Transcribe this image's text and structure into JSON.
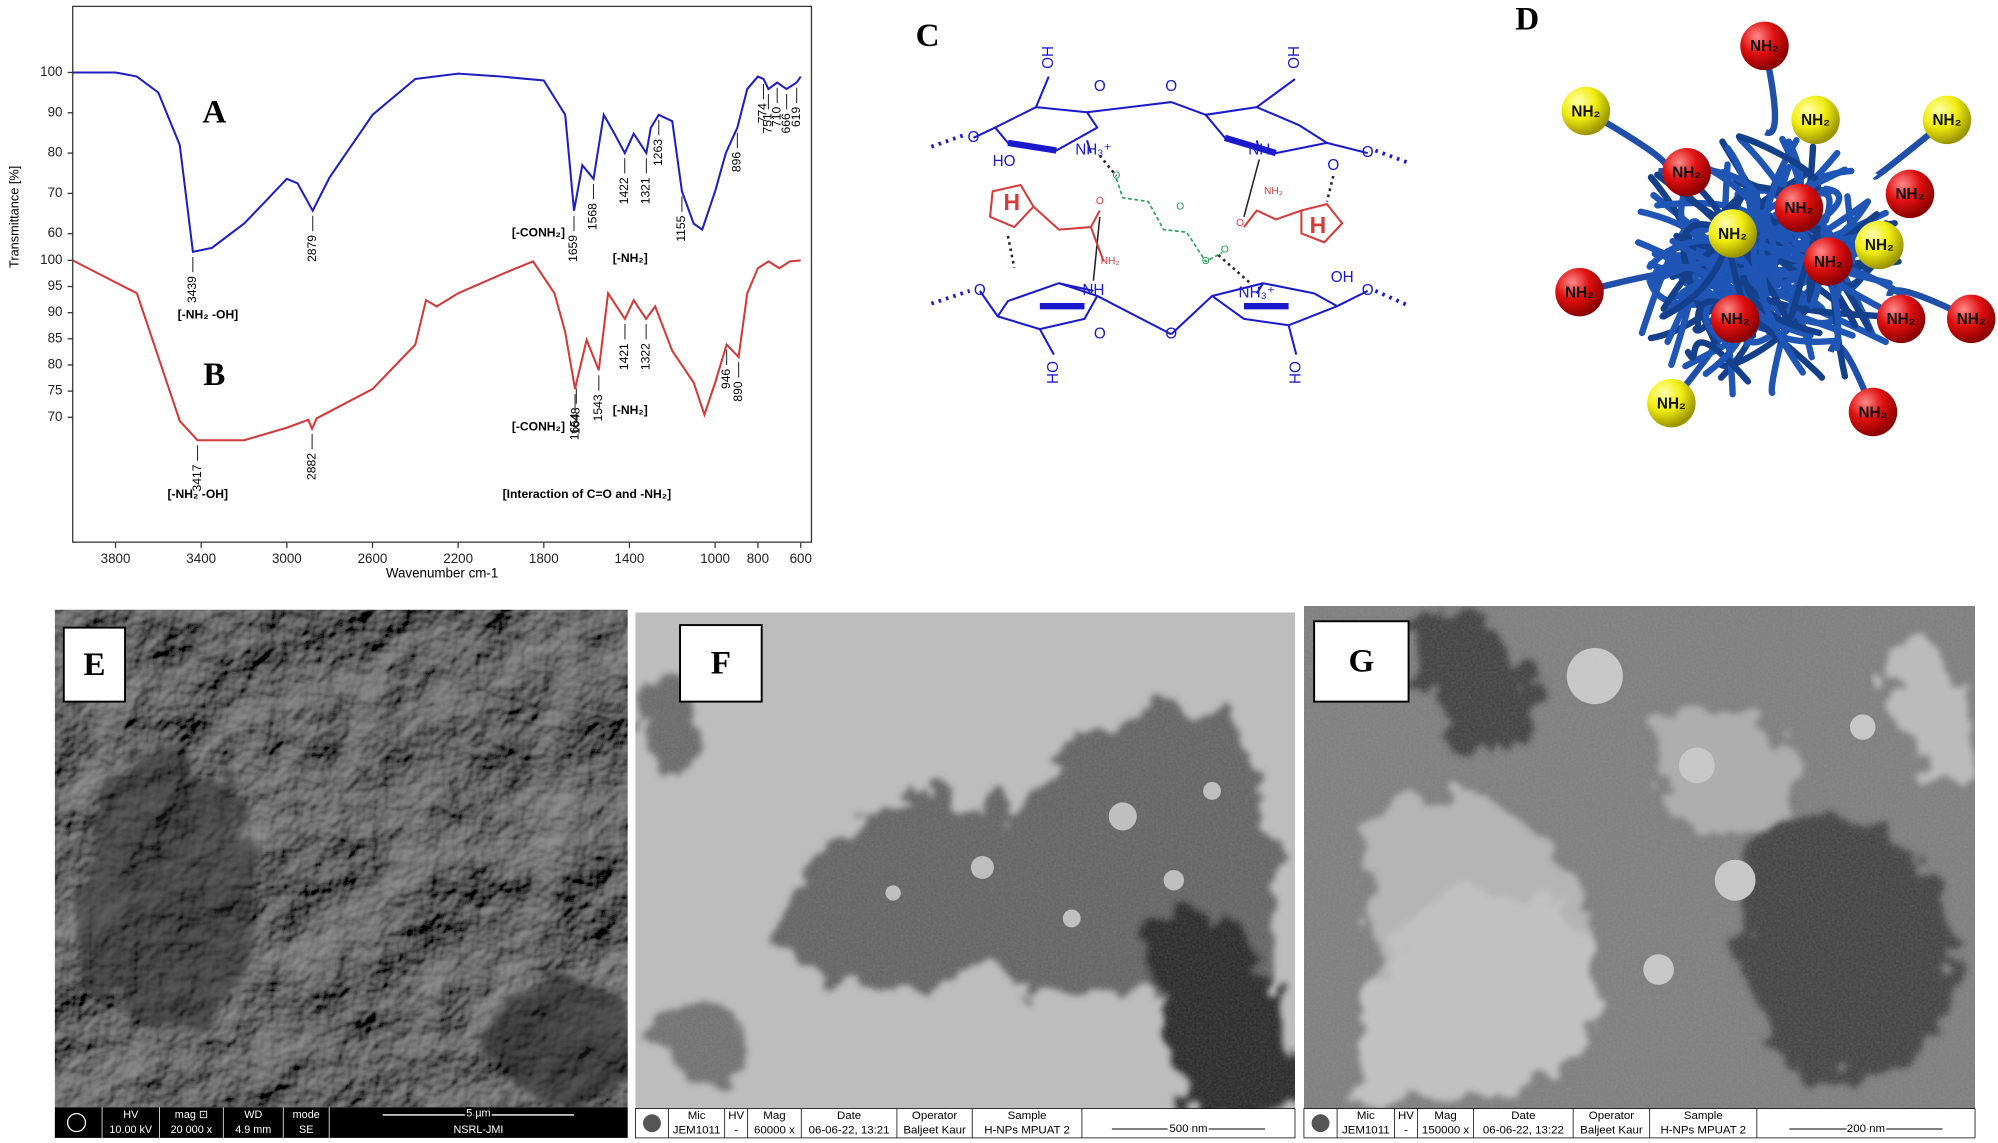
{
  "chart_data": [
    {
      "type": "line",
      "panel": "A",
      "color": "#1f1fbf",
      "y_label": "Transmittance [%]",
      "x": [
        4000,
        3800,
        3700,
        3600,
        3500,
        3439,
        3350,
        3200,
        3100,
        3000,
        2950,
        2879,
        2800,
        2600,
        2400,
        2200,
        2000,
        1800,
        1700,
        1659,
        1620,
        1568,
        1520,
        1470,
        1422,
        1380,
        1321,
        1300,
        1263,
        1200,
        1155,
        1100,
        1060,
        1000,
        950,
        896,
        850,
        800,
        774,
        751,
        710,
        666,
        619,
        600
      ],
      "values": [
        100,
        100,
        99,
        95,
        82,
        55.5,
        56.5,
        62.5,
        68,
        73.6,
        72.5,
        65.7,
        74,
        89.5,
        98.4,
        99.7,
        99,
        98,
        89.5,
        65.7,
        77,
        73.6,
        89.5,
        84.8,
        80,
        84.8,
        80,
        86.3,
        89.5,
        87.9,
        70.5,
        62.5,
        61,
        70.5,
        80,
        86.3,
        95.9,
        99,
        98.4,
        95.9,
        97.5,
        95.9,
        97.5,
        99
      ],
      "peaks": [
        3439,
        2879,
        1659,
        1568,
        1422,
        1321,
        1263,
        1155,
        896,
        774,
        751,
        710,
        666,
        619
      ],
      "annotations": [
        "[-NH₂ -OH]",
        "[-CONH₂]",
        "[-NH₂]"
      ],
      "xlim": [
        4000,
        550
      ],
      "ylim": [
        55,
        105
      ],
      "yticks": [
        100,
        90,
        80,
        70,
        60
      ]
    },
    {
      "type": "line",
      "panel": "B",
      "color": "#d23a3a",
      "x_label": "Wavenumber cm-1",
      "x": [
        4000,
        3700,
        3600,
        3500,
        3417,
        3200,
        3000,
        2900,
        2882,
        2860,
        2600,
        2400,
        2350,
        2300,
        2200,
        2000,
        1850,
        1750,
        1700,
        1654,
        1648,
        1600,
        1543,
        1500,
        1421,
        1380,
        1322,
        1280,
        1200,
        1100,
        1050,
        1000,
        946,
        890,
        850,
        800,
        750,
        700,
        650,
        600
      ],
      "values": [
        100,
        93.7,
        81.5,
        69.3,
        65.6,
        65.6,
        68,
        69.5,
        67.8,
        69.8,
        75.4,
        83.9,
        92.4,
        91.2,
        93.7,
        97.3,
        99.8,
        93.7,
        86.3,
        75.4,
        76.5,
        84.8,
        79,
        93.7,
        88.8,
        92.4,
        88.8,
        91.2,
        82.7,
        76.6,
        70.5,
        76.6,
        83.9,
        81.5,
        93.7,
        98.5,
        99.8,
        98.5,
        99.8,
        100
      ],
      "peaks": [
        3417,
        2882,
        1654,
        1648,
        1543,
        1421,
        1322,
        946,
        890
      ],
      "annotations": [
        "[-NH₂ -OH]",
        "[-CONH₂]",
        "[-NH₂]",
        "[Interaction of C=O and -NH₂]"
      ],
      "xlim": [
        4000,
        550
      ],
      "ylim": [
        46,
        101
      ],
      "yticks": [
        100,
        95,
        90,
        85,
        80,
        75,
        70
      ],
      "xticks": [
        3800,
        3400,
        3000,
        2600,
        2200,
        1800,
        1400,
        1000,
        800,
        600
      ]
    }
  ],
  "panels": {
    "c": {
      "label": "C",
      "texts": [
        "OH",
        "O",
        "O",
        "OH",
        "O",
        "HO",
        "NH₃⁺",
        "NH",
        "O",
        "O",
        "H",
        "O",
        "NH₂",
        "O",
        "NH₂",
        "H",
        "O",
        "O",
        "O",
        "O",
        "O",
        "NH",
        "NH₃⁺",
        "OH",
        "O",
        "O",
        "O",
        "HO",
        "HO"
      ]
    },
    "d": {
      "label": "D",
      "ball_label": "NH₂"
    },
    "e": {
      "label": "E",
      "headers": [
        "HV",
        "mag ⊡",
        "WD",
        "mode"
      ],
      "values": [
        "10.00 kV",
        "20 000 x",
        "4.9 mm",
        "SE"
      ],
      "scale": "5 µm",
      "lab": "NSRL-JMI"
    },
    "f": {
      "label": "F",
      "headers": [
        "Mic",
        "HV",
        "Mag",
        "Date",
        "Operator",
        "Sample"
      ],
      "values": [
        "JEM1011",
        "-",
        "60000 x",
        "06-06-22, 13:21",
        "Baljeet Kaur",
        "H-NPs MPUAT 2"
      ],
      "scale": "500 nm"
    },
    "g": {
      "label": "G",
      "headers": [
        "Mic",
        "HV",
        "Mag",
        "Date",
        "Operator",
        "Sample"
      ],
      "values": [
        "JEM1011",
        "-",
        "150000 x",
        "06-06-22, 13:22",
        "Baljeet Kaur",
        "H-NPs MPUAT 2"
      ],
      "scale": "200 nm"
    }
  }
}
